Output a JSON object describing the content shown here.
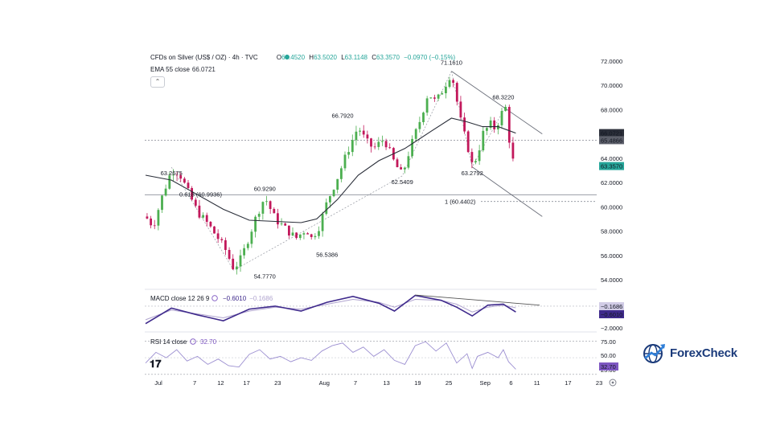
{
  "header": {
    "symbol": "CFDs on Silver (US$ / OZ) · 4h · TVC",
    "open_label": "O",
    "open": "63.4520",
    "high_label": "H",
    "high": "63.5020",
    "low_label": "L",
    "low": "63.1148",
    "close_label": "C",
    "close": "63.3570",
    "change": "−0.0970 (−0.15%)",
    "ema_label": "EMA 55 close",
    "ema_value": "66.0721",
    "collapse_glyph": "⌃"
  },
  "colors": {
    "up": "#26a69a",
    "down": "#ef5350",
    "bull": "#4caf50",
    "bear": "#c2185b",
    "ema": "#2a2e39",
    "macd": "#3f2a8c",
    "signal": "#b0a4cf",
    "rsi": "#9c8fd1",
    "price_tag": "#2a2e39",
    "last_tag": "#26a69a",
    "macd_tag": "#3f2a8c",
    "rsi_tag": "#7e57c2",
    "logo": "#1a3a7a"
  },
  "macd_panel": {
    "label": "MACD close 12 26 9",
    "value1": "−0.6010",
    "value2": "−0.1686"
  },
  "rsi_panel": {
    "label": "RSI 14 close",
    "value": "32.70"
  },
  "logo": {
    "text": "ForexCheck",
    "icon": "globe-arrow-icon"
  },
  "settings_icon": "settings-icon",
  "chart_data": {
    "type": "candlestick",
    "title": "CFDs on Silver (US$ / OZ) · 4h · TVC",
    "price_axis": {
      "ticks": [
        "72.0000",
        "70.0000",
        "68.0000",
        "66.0000",
        "64.0000",
        "62.0000",
        "60.0000",
        "58.0000",
        "56.0000",
        "54.0000"
      ],
      "ylim": [
        53.2,
        72.3
      ]
    },
    "time_axis": {
      "ticks": [
        "Jul",
        "7",
        "12",
        "17",
        "23",
        "Aug",
        "7",
        "13",
        "19",
        "25",
        "Sep",
        "6",
        "11",
        "17",
        "23"
      ],
      "dates": [
        0,
        7,
        12,
        17,
        23,
        32,
        38,
        44,
        50,
        56,
        63,
        68,
        73,
        79,
        85
      ]
    },
    "tags": {
      "ema": "66.0721",
      "level": "65.4866",
      "last": "63.3570"
    },
    "swing_labels": [
      {
        "text": "63.2675",
        "value": 63.2675
      },
      {
        "text": "60.9290",
        "value": 60.929
      },
      {
        "text": "54.7770",
        "value": 54.777
      },
      {
        "text": "56.5386",
        "value": 56.5386
      },
      {
        "text": "66.7920",
        "value": 66.792
      },
      {
        "text": "62.5409",
        "value": 62.5409
      },
      {
        "text": "71.1610",
        "value": 71.161
      },
      {
        "text": "68.3220",
        "value": 68.322
      },
      {
        "text": "63.2792",
        "value": 63.2792
      }
    ],
    "fib_labels": {
      "f618": {
        "text": "0.618 (60.9936)",
        "value": 60.9936
      },
      "f1": {
        "text": "1 (60.4402)",
        "value": 60.4402
      }
    },
    "price_path": [
      [
        0,
        59.2
      ],
      [
        1.5,
        58.4
      ],
      [
        3,
        60.6
      ],
      [
        5,
        63.0
      ],
      [
        6.5,
        62.8
      ],
      [
        8,
        61.4
      ],
      [
        10,
        59.6
      ],
      [
        12,
        58.6
      ],
      [
        14,
        57.4
      ],
      [
        15.5,
        56.4
      ],
      [
        17,
        54.9
      ],
      [
        18.5,
        55.8
      ],
      [
        20,
        57.6
      ],
      [
        21.5,
        59.4
      ],
      [
        23,
        60.8
      ],
      [
        25,
        59.0
      ],
      [
        27,
        58.2
      ],
      [
        29,
        57.4
      ],
      [
        31,
        58.2
      ],
      [
        32,
        57.4
      ],
      [
        33.5,
        58.4
      ],
      [
        35,
        60.4
      ],
      [
        37,
        62.4
      ],
      [
        39,
        64.6
      ],
      [
        41,
        66.6
      ],
      [
        42.5,
        65.4
      ],
      [
        44,
        64.8
      ],
      [
        46,
        65.6
      ],
      [
        48,
        63.6
      ],
      [
        49.5,
        62.6
      ],
      [
        51,
        64.8
      ],
      [
        53,
        67.2
      ],
      [
        54.5,
        69.4
      ],
      [
        56,
        68.6
      ],
      [
        57.5,
        69.8
      ],
      [
        59,
        71.1
      ],
      [
        60,
        68.8
      ],
      [
        61,
        66.6
      ],
      [
        62,
        65.2
      ],
      [
        63,
        63.4
      ],
      [
        64,
        64.2
      ],
      [
        65,
        66.0
      ],
      [
        66.5,
        66.8
      ],
      [
        67.5,
        66.4
      ],
      [
        68.5,
        67.6
      ],
      [
        69.5,
        68.2
      ],
      [
        70,
        66.0
      ],
      [
        70.6,
        64.0
      ],
      [
        71.4,
        63.36
      ]
    ],
    "ema_path": [
      [
        0,
        62.6
      ],
      [
        5,
        62.2
      ],
      [
        10,
        61.0
      ],
      [
        15,
        59.8
      ],
      [
        20,
        58.9
      ],
      [
        25,
        58.8
      ],
      [
        30,
        58.7
      ],
      [
        33,
        59.0
      ],
      [
        37,
        60.6
      ],
      [
        41,
        62.6
      ],
      [
        45,
        63.8
      ],
      [
        50,
        64.8
      ],
      [
        55,
        66.2
      ],
      [
        59,
        67.3
      ],
      [
        62,
        67.0
      ],
      [
        65,
        66.6
      ],
      [
        68,
        66.6
      ],
      [
        71.4,
        66.07
      ]
    ],
    "macd": {
      "ylim": [
        -2.4,
        1.4
      ],
      "ticks": [
        "−2.0000"
      ],
      "macd_line": [
        [
          0,
          -1.8
        ],
        [
          5,
          -0.2
        ],
        [
          10,
          -0.9
        ],
        [
          15,
          -1.5
        ],
        [
          20,
          -0.3
        ],
        [
          25,
          0.0
        ],
        [
          30,
          -0.5
        ],
        [
          35,
          0.4
        ],
        [
          40,
          1.0
        ],
        [
          45,
          0.3
        ],
        [
          48,
          -0.5
        ],
        [
          52,
          1.1
        ],
        [
          57,
          0.6
        ],
        [
          60,
          -0.1
        ],
        [
          63,
          -1.0
        ],
        [
          66,
          0.1
        ],
        [
          69,
          0.2
        ],
        [
          71.4,
          -0.601
        ]
      ],
      "signal_line": [
        [
          0,
          -1.4
        ],
        [
          5,
          -0.4
        ],
        [
          10,
          -0.8
        ],
        [
          15,
          -1.2
        ],
        [
          20,
          -0.5
        ],
        [
          25,
          -0.1
        ],
        [
          30,
          -0.3
        ],
        [
          35,
          0.2
        ],
        [
          40,
          0.7
        ],
        [
          45,
          0.4
        ],
        [
          48,
          -0.1
        ],
        [
          52,
          0.7
        ],
        [
          57,
          0.6
        ],
        [
          60,
          0.2
        ],
        [
          63,
          -0.6
        ],
        [
          66,
          -0.1
        ],
        [
          69,
          0.1
        ],
        [
          71.4,
          -0.1686
        ]
      ]
    },
    "rsi": {
      "ylim": [
        20,
        85
      ],
      "ticks": [
        "75.00",
        "50.00",
        "25.00"
      ],
      "line": [
        [
          0,
          42
        ],
        [
          2,
          58
        ],
        [
          4,
          50
        ],
        [
          6,
          62
        ],
        [
          8,
          45
        ],
        [
          10,
          52
        ],
        [
          12,
          40
        ],
        [
          14,
          48
        ],
        [
          16,
          38
        ],
        [
          18,
          36
        ],
        [
          20,
          55
        ],
        [
          22,
          62
        ],
        [
          24,
          48
        ],
        [
          26,
          52
        ],
        [
          28,
          44
        ],
        [
          30,
          50
        ],
        [
          32,
          46
        ],
        [
          34,
          60
        ],
        [
          36,
          68
        ],
        [
          38,
          72
        ],
        [
          40,
          58
        ],
        [
          42,
          66
        ],
        [
          44,
          52
        ],
        [
          46,
          62
        ],
        [
          48,
          46
        ],
        [
          50,
          40
        ],
        [
          52,
          68
        ],
        [
          54,
          74
        ],
        [
          56,
          60
        ],
        [
          58,
          72
        ],
        [
          60,
          42
        ],
        [
          62,
          56
        ],
        [
          63,
          34
        ],
        [
          64,
          52
        ],
        [
          66,
          58
        ],
        [
          68,
          50
        ],
        [
          69,
          62
        ],
        [
          70,
          44
        ],
        [
          71.4,
          32.7
        ]
      ]
    }
  }
}
